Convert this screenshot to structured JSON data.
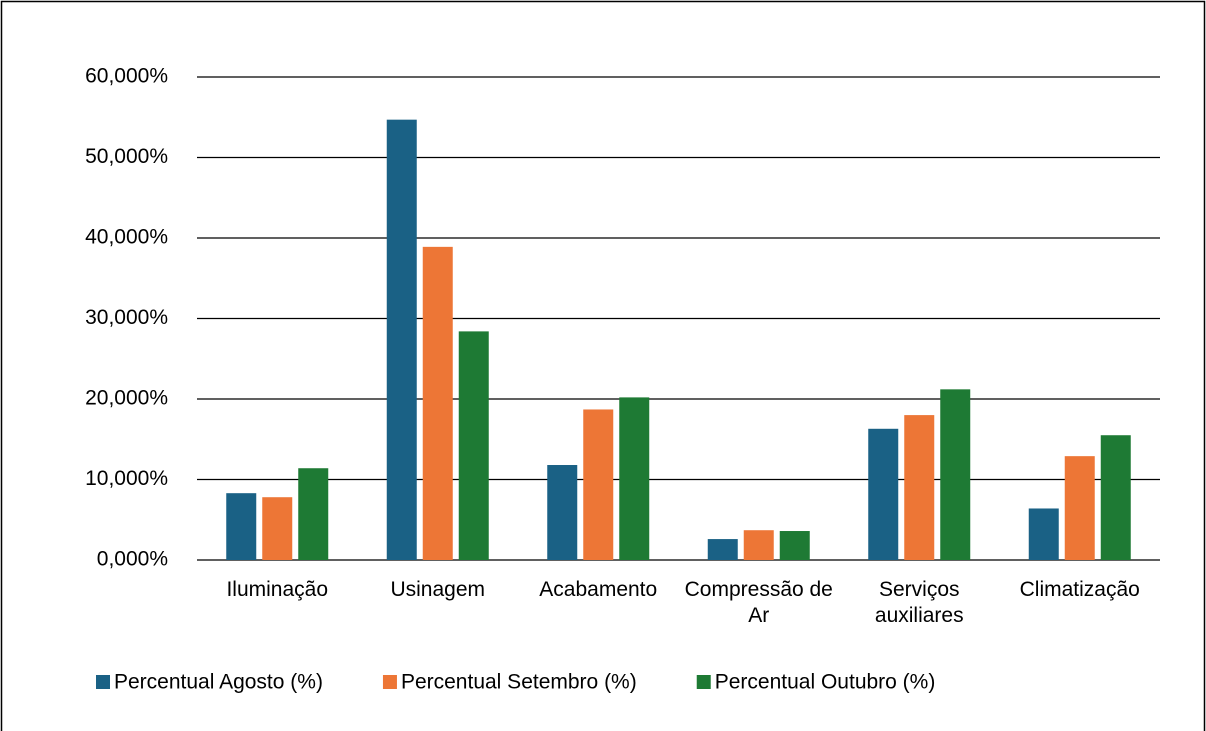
{
  "chart_data": {
    "type": "bar",
    "categories": [
      "Iluminação",
      "Usinagem",
      "Acabamento",
      "Compressão de Ar",
      "Serviços auxiliares",
      "Climatização"
    ],
    "series": [
      {
        "name": "Percentual Agosto (%)",
        "color": "#1a6185",
        "values": [
          8.3,
          54.7,
          11.8,
          2.6,
          16.3,
          6.4
        ]
      },
      {
        "name": "Percentual Setembro (%)",
        "color": "#ed7636",
        "values": [
          7.8,
          38.9,
          18.7,
          3.7,
          18.0,
          12.9
        ]
      },
      {
        "name": "Percentual Outubro (%)",
        "color": "#1e7a34",
        "values": [
          11.4,
          28.4,
          20.2,
          3.6,
          21.2,
          15.5
        ]
      }
    ],
    "ylim": [
      0,
      60
    ],
    "yticks": [
      {
        "value": 0,
        "label": "0,000%"
      },
      {
        "value": 10,
        "label": "10,000%"
      },
      {
        "value": 20,
        "label": "20,000%"
      },
      {
        "value": 30,
        "label": "30,000%"
      },
      {
        "value": 40,
        "label": "40,000%"
      },
      {
        "value": 50,
        "label": "50,000%"
      },
      {
        "value": 60,
        "label": "60,000%"
      }
    ],
    "grid": true,
    "legend": "bottom"
  }
}
